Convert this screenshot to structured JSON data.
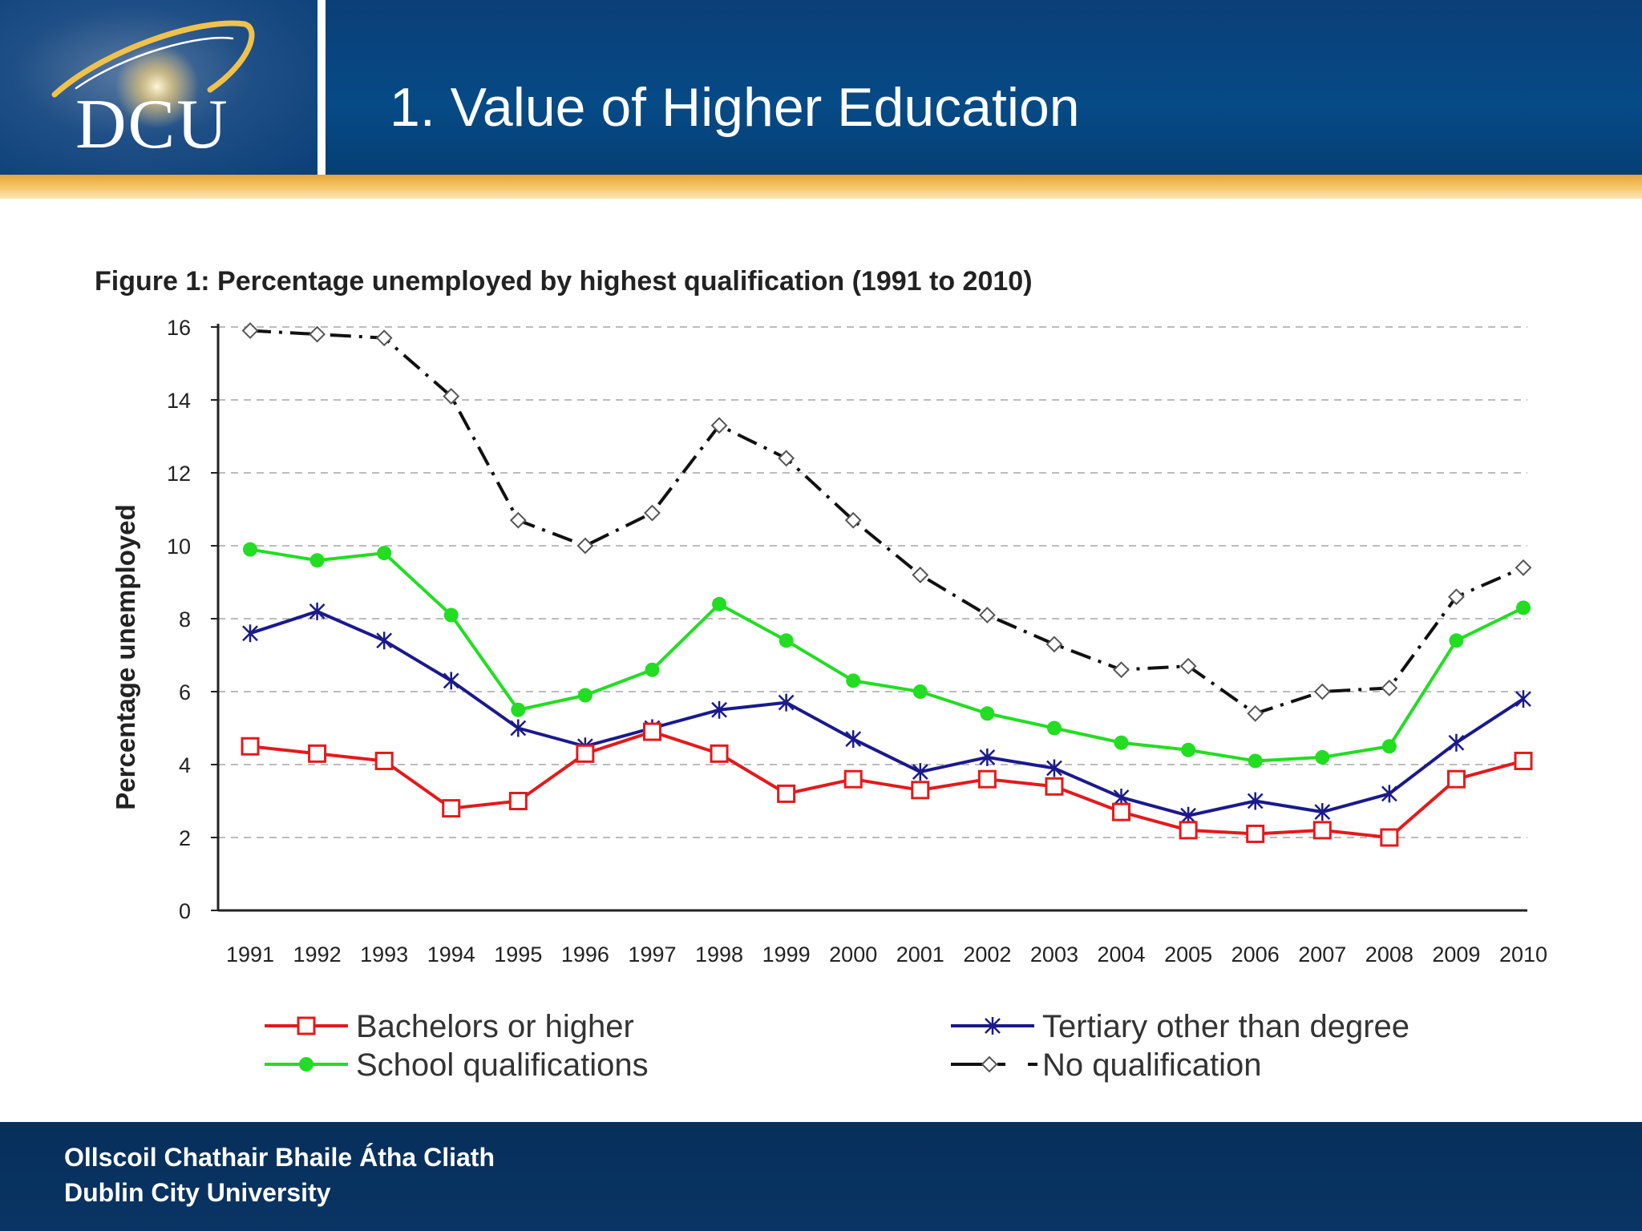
{
  "header": {
    "logo_text": "DCU",
    "title": "1. Value of Higher Education"
  },
  "footer": {
    "line1": "Ollscoil Chathair Bhaile Átha Cliath",
    "line2": "Dublin City University"
  },
  "colors": {
    "header_blue": "#064a86",
    "gold_band": "#f2b84f",
    "footer_navy": "#062f5c",
    "bachelors": "#e31a1c",
    "school": "#22dd22",
    "tertiary": "#1a1a8c",
    "no_qualification": "#111111"
  },
  "chart_data": {
    "type": "line",
    "title": "Figure 1: Percentage unemployed by highest qualification (1991 to 2010)",
    "xlabel": "",
    "ylabel": "Percentage unemployed",
    "ylim": [
      0,
      16
    ],
    "yticks": [
      0,
      2,
      4,
      6,
      8,
      10,
      12,
      14,
      16
    ],
    "grid": true,
    "legend_position": "bottom",
    "categories": [
      "1991",
      "1992",
      "1993",
      "1994",
      "1995",
      "1996",
      "1997",
      "1998",
      "1999",
      "2000",
      "2001",
      "2002",
      "2003",
      "2004",
      "2005",
      "2006",
      "2007",
      "2008",
      "2009",
      "2010"
    ],
    "series": [
      {
        "name": "Bachelors or higher",
        "color": "#e31a1c",
        "marker": "square-open",
        "line": "solid",
        "values": [
          4.5,
          4.3,
          4.1,
          2.8,
          3.0,
          4.3,
          4.9,
          4.3,
          3.2,
          3.6,
          3.3,
          3.6,
          3.4,
          2.7,
          2.2,
          2.1,
          2.2,
          2.0,
          3.6,
          4.1
        ]
      },
      {
        "name": "Tertiary other than degree",
        "color": "#1a1a8c",
        "marker": "asterisk",
        "line": "solid",
        "values": [
          7.6,
          8.2,
          7.4,
          6.3,
          5.0,
          4.5,
          5.0,
          5.5,
          5.7,
          4.7,
          3.8,
          4.2,
          3.9,
          3.1,
          2.6,
          3.0,
          2.7,
          3.2,
          4.6,
          5.8
        ]
      },
      {
        "name": "School qualifications",
        "color": "#22dd22",
        "marker": "dot",
        "line": "solid",
        "values": [
          9.9,
          9.6,
          9.8,
          8.1,
          5.5,
          5.9,
          6.6,
          8.4,
          7.4,
          6.3,
          6.0,
          5.4,
          5.0,
          4.6,
          4.4,
          4.1,
          4.2,
          4.5,
          7.4,
          8.3
        ]
      },
      {
        "name": "No qualification",
        "color": "#111111",
        "marker": "diamond-open",
        "line": "dash-dot",
        "values": [
          15.9,
          15.8,
          15.7,
          14.1,
          10.7,
          10.0,
          10.9,
          13.3,
          12.4,
          10.7,
          9.2,
          8.1,
          7.3,
          6.6,
          6.7,
          5.4,
          6.0,
          6.1,
          8.6,
          9.4
        ]
      }
    ]
  }
}
